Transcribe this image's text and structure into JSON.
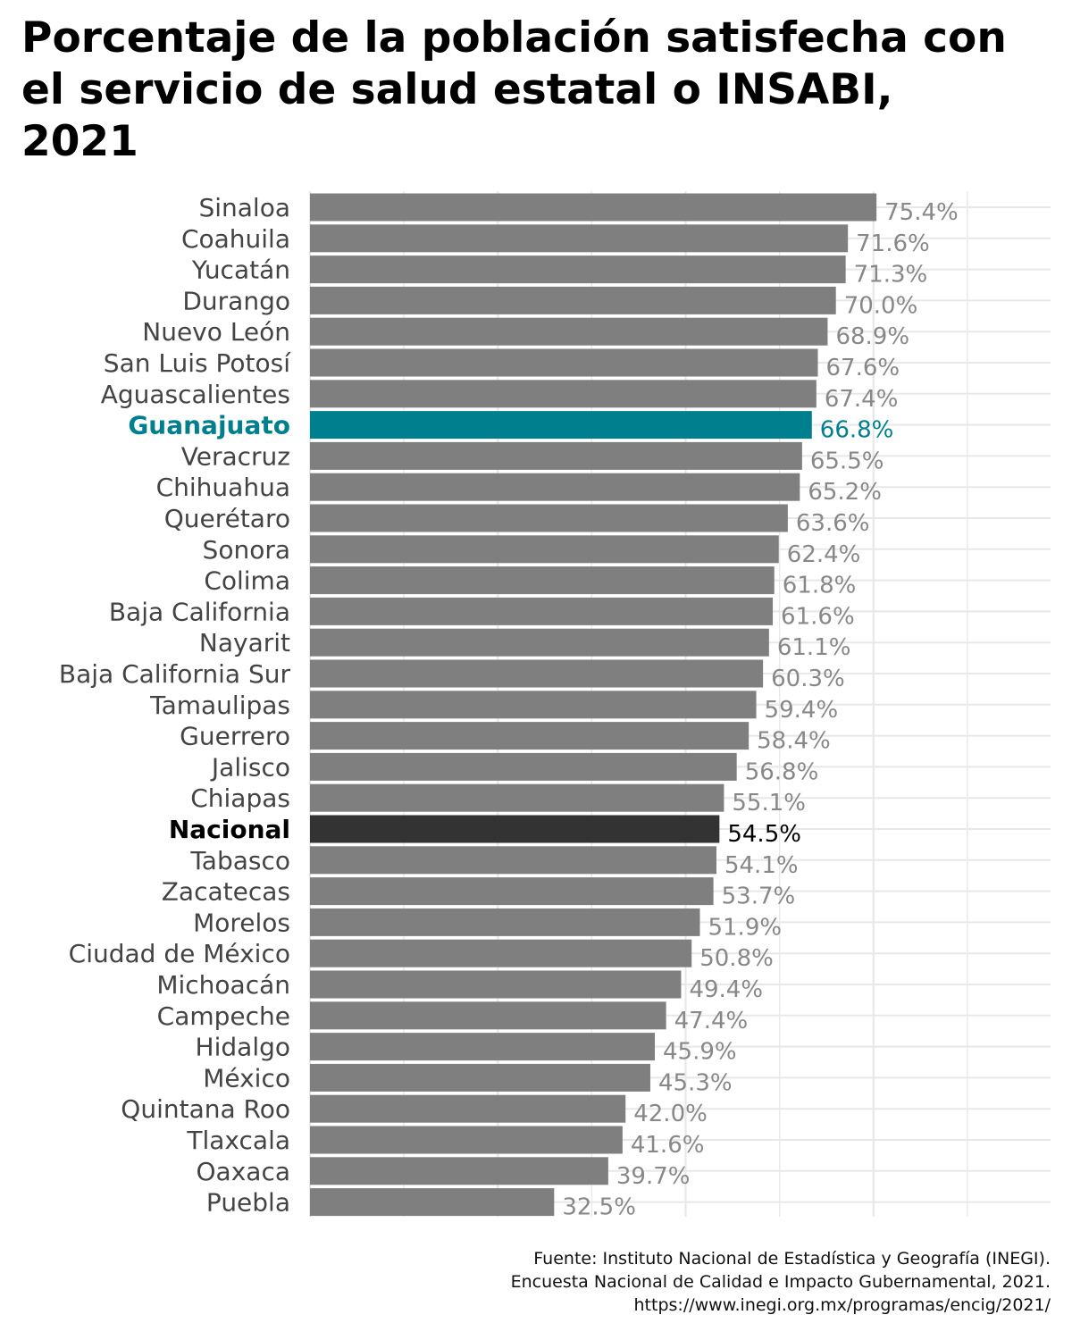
{
  "title": "Porcentaje de la población satisfecha con el servicio de salud estatal o INSABI, 2021",
  "source_lines": [
    "Fuente: Instituto Nacional de Estadística y Geografía (INEGI).",
    "Encuesta Nacional de Calidad e Impacto Gubernamental, 2021.",
    "https://www.inegi.org.mx/programas/encig/2021/"
  ],
  "colors": {
    "default_bar": "#7f7f7f",
    "highlight_bar": "#00808f",
    "national_bar": "#333333",
    "default_label": "#444444",
    "default_value": "#888888",
    "highlight_label": "#00808f",
    "national_label": "#000000",
    "grid": "#e8e8e8"
  },
  "chart_data": {
    "type": "bar",
    "orientation": "horizontal",
    "title": "Porcentaje de la población satisfecha con el servicio de salud estatal o INSABI, 2021",
    "xlabel": "",
    "ylabel": "",
    "xlim": [
      0,
      100
    ],
    "grid": true,
    "value_suffix": "%",
    "categories": [
      "Sinaloa",
      "Coahuila",
      "Yucatán",
      "Durango",
      "Nuevo León",
      "San Luis Potosí",
      "Aguascalientes",
      "Guanajuato",
      "Veracruz",
      "Chihuahua",
      "Querétaro",
      "Sonora",
      "Colima",
      "Baja California",
      "Nayarit",
      "Baja California Sur",
      "Tamaulipas",
      "Guerrero",
      "Jalisco",
      "Chiapas",
      "Nacional",
      "Tabasco",
      "Zacatecas",
      "Morelos",
      "Ciudad de México",
      "Michoacán",
      "Campeche",
      "Hidalgo",
      "México",
      "Quintana Roo",
      "Tlaxcala",
      "Oaxaca",
      "Puebla"
    ],
    "values": [
      75.4,
      71.6,
      71.3,
      70.0,
      68.9,
      67.6,
      67.4,
      66.8,
      65.5,
      65.2,
      63.6,
      62.4,
      61.8,
      61.6,
      61.1,
      60.3,
      59.4,
      58.4,
      56.8,
      55.1,
      54.5,
      54.1,
      53.7,
      51.9,
      50.8,
      49.4,
      47.4,
      45.9,
      45.3,
      42.0,
      41.6,
      39.7,
      32.5
    ],
    "value_labels": [
      "75.4%",
      "71.6%",
      "71.3%",
      "70.0%",
      "68.9%",
      "67.6%",
      "67.4%",
      "66.8%",
      "65.5%",
      "65.2%",
      "63.6%",
      "62.4%",
      "61.8%",
      "61.6%",
      "61.1%",
      "60.3%",
      "59.4%",
      "58.4%",
      "56.8%",
      "55.1%",
      "54.5%",
      "54.1%",
      "53.7%",
      "51.9%",
      "50.8%",
      "49.4%",
      "47.4%",
      "45.9%",
      "45.3%",
      "42.0%",
      "41.6%",
      "39.7%",
      "32.5%"
    ],
    "highlight": "Guanajuato",
    "national": "Nacional"
  }
}
